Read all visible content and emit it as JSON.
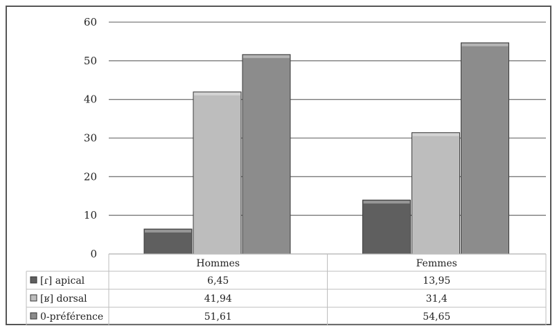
{
  "chart_data": {
    "type": "bar",
    "categories": [
      "Hommes",
      "Femmes"
    ],
    "series": [
      {
        "name": "[ɾ] apical",
        "values": [
          6.45,
          13.95
        ],
        "color": "#5f5f5f"
      },
      {
        "name": "[ʁ] dorsal",
        "values": [
          41.94,
          31.4
        ],
        "color": "#bdbdbd"
      },
      {
        "name": "0-préférence",
        "values": [
          51.61,
          54.65
        ],
        "color": "#8c8c8c"
      }
    ],
    "table_values": [
      [
        "6,45",
        "13,95"
      ],
      [
        "41,94",
        "31,4"
      ],
      [
        "51,61",
        "54,65"
      ]
    ],
    "y_ticks": [
      "0",
      "10",
      "20",
      "30",
      "40",
      "50",
      "60"
    ],
    "ylim": [
      0,
      60
    ],
    "grid": true,
    "legend": "data-table-rows"
  }
}
